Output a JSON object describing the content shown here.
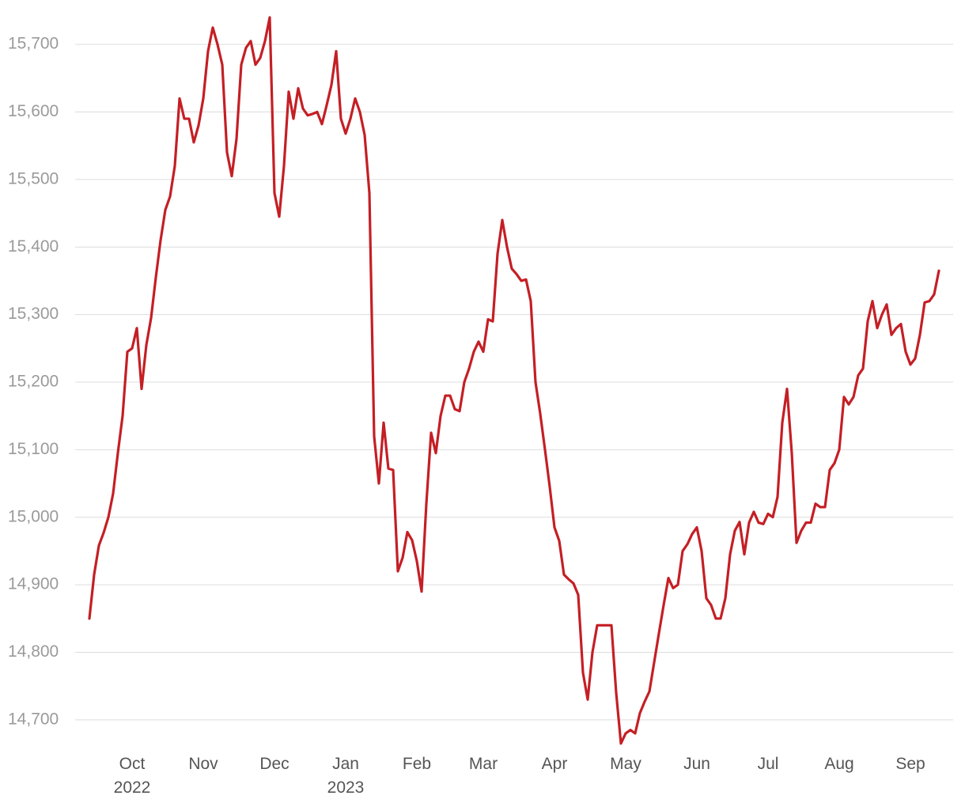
{
  "chart_data": {
    "type": "line",
    "categories": [
      null,
      null,
      null,
      null,
      null,
      null,
      null,
      null,
      null,
      "Oct 2022",
      null,
      null,
      null,
      null,
      null,
      null,
      null,
      null,
      null,
      null,
      null,
      null,
      null,
      null,
      "Nov",
      null,
      null,
      null,
      null,
      null,
      null,
      null,
      null,
      null,
      null,
      null,
      null,
      null,
      null,
      "Dec",
      null,
      null,
      null,
      null,
      null,
      null,
      null,
      null,
      null,
      null,
      null,
      null,
      null,
      null,
      "Jan 2023",
      null,
      null,
      null,
      null,
      null,
      null,
      null,
      null,
      null,
      null,
      null,
      null,
      null,
      null,
      "Feb",
      null,
      null,
      null,
      null,
      null,
      null,
      null,
      null,
      null,
      null,
      null,
      null,
      null,
      "Mar",
      null,
      null,
      null,
      null,
      null,
      null,
      null,
      null,
      null,
      null,
      null,
      null,
      null,
      null,
      "Apr",
      null,
      null,
      null,
      null,
      null,
      null,
      null,
      null,
      null,
      null,
      null,
      null,
      null,
      null,
      "May",
      null,
      null,
      null,
      null,
      null,
      null,
      null,
      null,
      null,
      null,
      null,
      null,
      null,
      null,
      "Jun",
      null,
      null,
      null,
      null,
      null,
      null,
      null,
      null,
      null,
      null,
      null,
      null,
      null,
      null,
      "Jul",
      null,
      null,
      null,
      null,
      null,
      null,
      null,
      null,
      null,
      null,
      null,
      null,
      null,
      null,
      "Aug",
      null,
      null,
      null,
      null,
      null,
      null,
      null,
      null,
      null,
      null,
      null,
      null,
      null,
      null,
      "Sep",
      null,
      null,
      null,
      null,
      null,
      null
    ],
    "values": [
      14850,
      14915,
      14958,
      14977,
      15000,
      15035,
      15095,
      15150,
      15245,
      15250,
      15280,
      15190,
      15255,
      15295,
      15355,
      15410,
      15455,
      15475,
      15520,
      15620,
      15590,
      15590,
      15555,
      15580,
      15620,
      15690,
      15725,
      15700,
      15670,
      15540,
      15505,
      15560,
      15670,
      15695,
      15705,
      15670,
      15680,
      15705,
      15740,
      15480,
      15445,
      15520,
      15630,
      15590,
      15635,
      15605,
      15595,
      15597,
      15600,
      15582,
      15610,
      15640,
      15690,
      15590,
      15568,
      15590,
      15620,
      15600,
      15566,
      15480,
      15120,
      15050,
      15140,
      15072,
      15070,
      14920,
      14940,
      14978,
      14966,
      14935,
      14890,
      15020,
      15125,
      15095,
      15150,
      15180,
      15180,
      15160,
      15157,
      15200,
      15220,
      15245,
      15260,
      15245,
      15293,
      15290,
      15390,
      15440,
      15400,
      15368,
      15360,
      15350,
      15352,
      15320,
      15200,
      15153,
      15100,
      15045,
      14985,
      14965,
      14915,
      14908,
      14902,
      14885,
      14770,
      14730,
      14800,
      14840,
      14840,
      14840,
      14840,
      14740,
      14665,
      14680,
      14685,
      14680,
      14710,
      14727,
      14742,
      14785,
      14828,
      14870,
      14910,
      14895,
      14900,
      14950,
      14960,
      14975,
      14985,
      14950,
      14880,
      14870,
      14850,
      14850,
      14880,
      14945,
      14980,
      14993,
      14945,
      14992,
      15008,
      14992,
      14990,
      15005,
      15000,
      15030,
      15140,
      15190,
      15095,
      14962,
      14980,
      14992,
      14992,
      15020,
      15015,
      15015,
      15070,
      15080,
      15100,
      15178,
      15167,
      15178,
      15210,
      15220,
      15290,
      15320,
      15280,
      15300,
      15315,
      15270,
      15280,
      15286,
      15245,
      15226,
      15235,
      15270,
      15318,
      15320,
      15330,
      15365
    ],
    "color": "#c41f25",
    "ylim": [
      14660,
      15740
    ],
    "yticks": [
      {
        "value": 14700,
        "label": "14,700"
      },
      {
        "value": 14800,
        "label": "14,800"
      },
      {
        "value": 14900,
        "label": "14,900"
      },
      {
        "value": 15000,
        "label": "15,000"
      },
      {
        "value": 15100,
        "label": "15,100"
      },
      {
        "value": 15200,
        "label": "15,200"
      },
      {
        "value": 15300,
        "label": "15,300"
      },
      {
        "value": 15400,
        "label": "15,400"
      },
      {
        "value": 15500,
        "label": "15,500"
      },
      {
        "value": 15600,
        "label": "15,600"
      },
      {
        "value": 15700,
        "label": "15,700"
      }
    ],
    "grid": true
  }
}
